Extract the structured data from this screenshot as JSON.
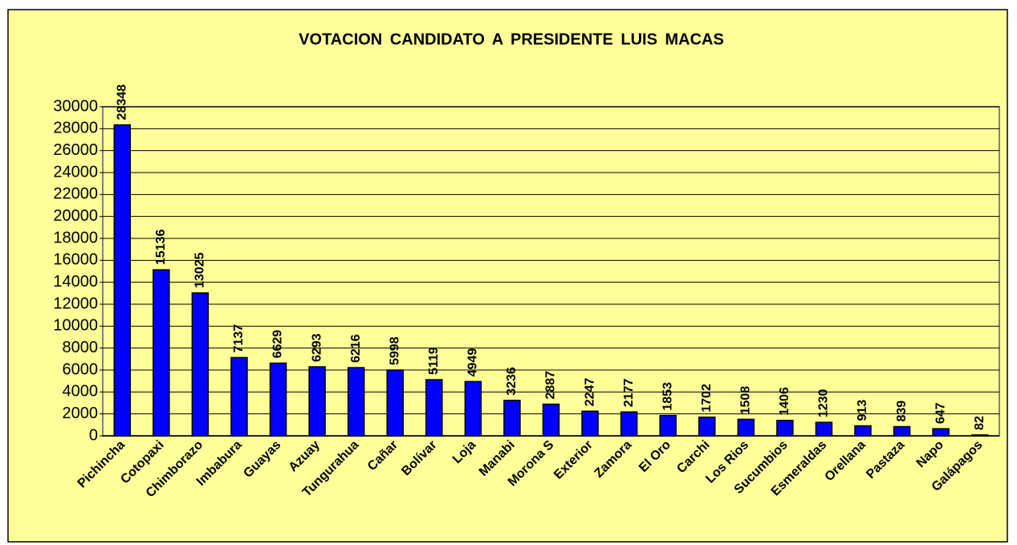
{
  "chart_data": {
    "type": "bar",
    "title": "VOTACION CANDIDATO A PRESIDENTE LUIS MACAS",
    "categories": [
      "Pichincha",
      "Cotopaxi",
      "Chimborazo",
      "Imbabura",
      "Guayas",
      "Azuay",
      "Tungurahua",
      "Cañar",
      "Bolívar",
      "Loja",
      "Manabi",
      "Morona S",
      "Exterior",
      "Zamora",
      "El Oro",
      "Carchi",
      "Los Rios",
      "Sucumbios",
      "Esmeraldas",
      "Orellana",
      "Pastaza",
      "Napo",
      "Galápagos"
    ],
    "values": [
      28348,
      15136,
      13025,
      7137,
      6629,
      6293,
      6216,
      5998,
      5119,
      4949,
      3236,
      2887,
      2247,
      2177,
      1853,
      1702,
      1508,
      1406,
      1230,
      913,
      839,
      647,
      82
    ],
    "color": "#0000ff",
    "ylim": [
      0,
      30000
    ],
    "yticks": [
      0,
      2000,
      4000,
      6000,
      8000,
      10000,
      12000,
      14000,
      16000,
      18000,
      20000,
      22000,
      24000,
      26000,
      28000,
      30000
    ],
    "grid": true
  }
}
